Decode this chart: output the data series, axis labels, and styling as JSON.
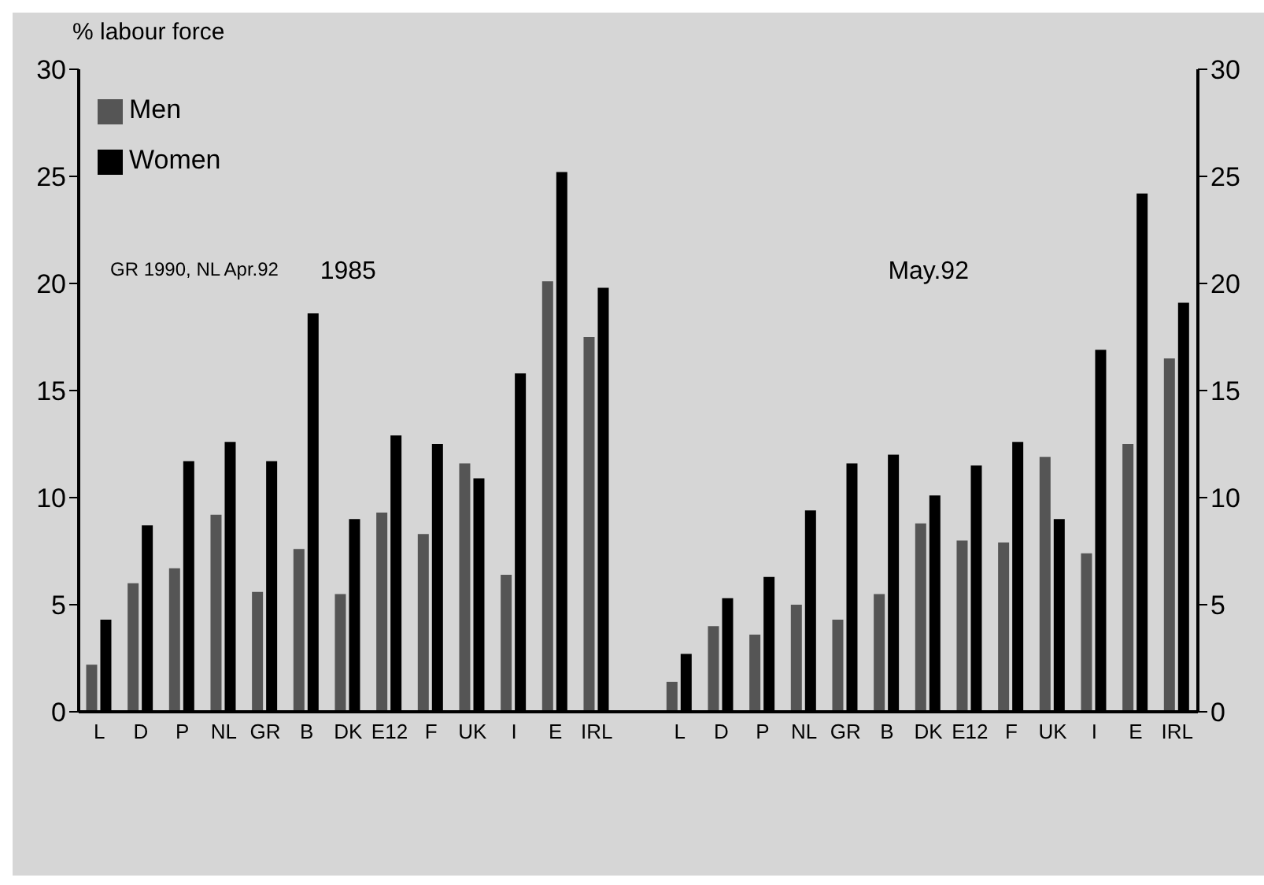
{
  "chart_data": {
    "type": "bar",
    "ylabel": "% labour force",
    "categories": [
      "L",
      "D",
      "P",
      "NL",
      "GR",
      "B",
      "DK",
      "E12",
      "F",
      "UK",
      "I",
      "E",
      "IRL",
      null,
      "L",
      "D",
      "P",
      "NL",
      "GR",
      "B",
      "DK",
      "E12",
      "F",
      "UK",
      "I",
      "E",
      "IRL"
    ],
    "series": [
      {
        "name": "Men",
        "color": "#555555",
        "values": [
          2.2,
          6.0,
          6.7,
          9.2,
          5.6,
          7.6,
          5.5,
          9.3,
          8.3,
          11.6,
          6.4,
          20.1,
          17.5,
          null,
          1.4,
          4.0,
          3.6,
          5.0,
          4.3,
          5.5,
          8.8,
          8.0,
          7.9,
          11.9,
          7.4,
          12.5,
          16.5
        ]
      },
      {
        "name": "Women",
        "color": "#000000",
        "values": [
          4.3,
          8.7,
          11.7,
          12.6,
          11.7,
          18.6,
          9.0,
          12.9,
          12.5,
          10.9,
          15.8,
          25.2,
          19.8,
          null,
          2.7,
          5.3,
          6.3,
          9.4,
          11.6,
          12.0,
          10.1,
          11.5,
          12.6,
          9.0,
          16.9,
          24.2,
          19.1
        ]
      }
    ],
    "ylim": [
      0,
      30
    ],
    "yticks": [
      0,
      5,
      10,
      15,
      20,
      25,
      30
    ],
    "y2lim": [
      0,
      30
    ],
    "y2ticks": [
      0,
      5,
      10,
      15,
      20,
      25,
      30
    ],
    "legend": "top left",
    "annotations": [
      "GR 1990, NL Apr.92",
      "1985",
      "May.92"
    ]
  }
}
